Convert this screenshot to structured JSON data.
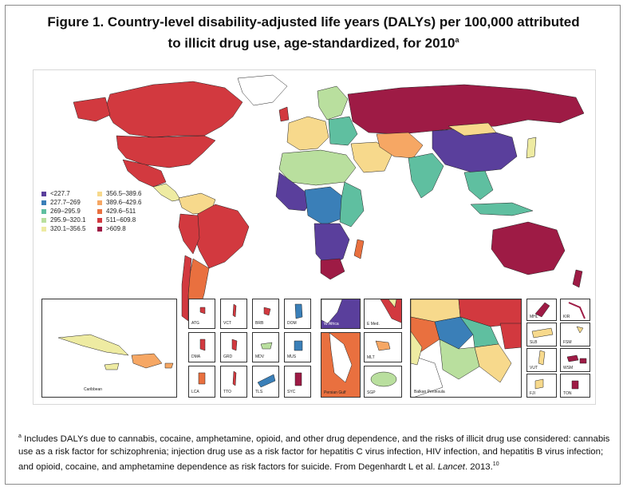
{
  "figure": {
    "title_line1": "Figure 1. Country-level disability-adjusted life years (DALYs) per 100,000 attributed",
    "title_line2": "to illicit drug use, age-standardized, for 2010",
    "title_sup": "a"
  },
  "legend": {
    "items": [
      {
        "label": "<227.7",
        "color": "#5a3f9c"
      },
      {
        "label": "227.7–269",
        "color": "#3a7fb8"
      },
      {
        "label": "269–295.9",
        "color": "#5fbfa0"
      },
      {
        "label": "295.9–320.1",
        "color": "#b9df9e"
      },
      {
        "label": "320.1–356.5",
        "color": "#eeeba2"
      },
      {
        "label": "356.5–389.6",
        "color": "#f7d98c"
      },
      {
        "label": "389.6–429.6",
        "color": "#f6a764"
      },
      {
        "label": "429.6–511",
        "color": "#e9703f"
      },
      {
        "label": "511–609.8",
        "color": "#d2393f"
      },
      {
        "label": ">609.8",
        "color": "#9e1b45"
      }
    ]
  },
  "insets": {
    "caribbean": "Caribbean",
    "small": [
      "ATG",
      "VCT",
      "BRB",
      "DOM",
      "DMA",
      "GRD",
      "MDV",
      "MUS",
      "LCA",
      "TTO",
      "TLS",
      "SYC"
    ],
    "w_africa": "W Africa",
    "e_med": "E Med.",
    "persian_gulf": "Persian Gulf",
    "mlt": "MLT",
    "sgp": "SGP",
    "balkan": "Balkan Peninsula",
    "pacific": [
      "MHL",
      "KIR",
      "SLB",
      "FSM",
      "VUT",
      "WSM",
      "FJI",
      "TON"
    ]
  },
  "footnote": {
    "sup": "a",
    "text": " Includes DALYs due to cannabis, cocaine, amphetamine, opioid, and other drug dependence, and the risks of illicit drug use considered: cannabis use as a risk factor for schizophrenia; injection drug use as a risk factor for hepatitis C virus infection, HIV infection, and hepatitis B virus infection; and opioid, cocaine, and amphetamine dependence as risk factors for suicide. From Degenhardt L et al. ",
    "journal": "Lancet",
    "year": ". 2013.",
    "ref": "10"
  }
}
